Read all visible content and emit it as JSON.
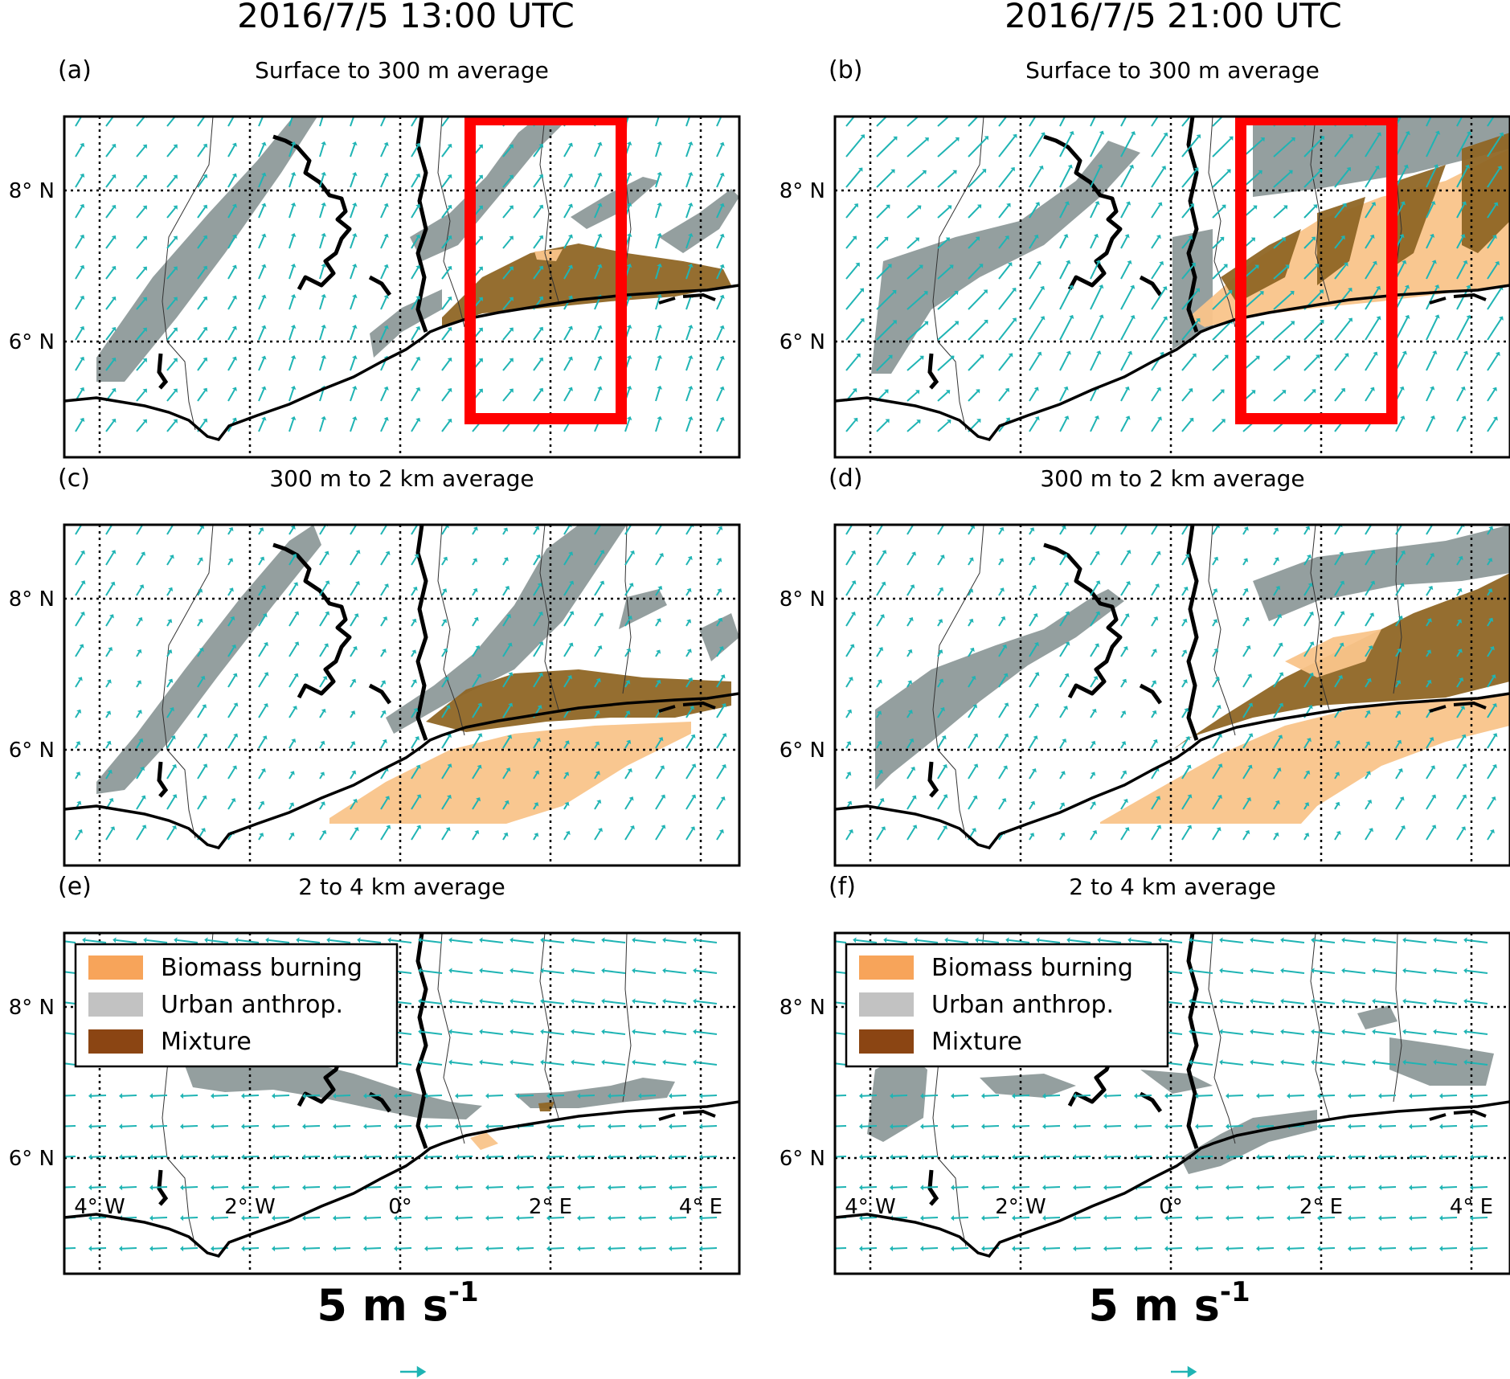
{
  "column_titles": [
    "2016/7/5   13:00 UTC",
    "2016/7/5  21:00 UTC"
  ],
  "panels": [
    {
      "letter": "(a)",
      "title": "Surface to 300 m average",
      "level": "surface",
      "time": "13UTC",
      "box": true
    },
    {
      "letter": "(b)",
      "title": "Surface to 300 m average",
      "level": "surface",
      "time": "21UTC",
      "box": true
    },
    {
      "letter": "(c)",
      "title": "300 m to 2 km average",
      "level": "mid",
      "time": "13UTC",
      "box": false
    },
    {
      "letter": "(d)",
      "title": "300 m to 2 km average",
      "level": "mid",
      "time": "21UTC",
      "box": false
    },
    {
      "letter": "(e)",
      "title": "2 to 4 km average",
      "level": "upper",
      "time": "13UTC",
      "box": false
    },
    {
      "letter": "(f)",
      "title": "2 to 4 km average",
      "level": "upper",
      "time": "21UTC",
      "box": false
    }
  ],
  "lat_ticks": [
    "8° N",
    "6° N"
  ],
  "lon_ticks": [
    "4° W",
    "2° W",
    "0°",
    "2° E",
    "4° E"
  ],
  "scale_label": {
    "main": "5 m s",
    "exp": "-1"
  },
  "legend": [
    {
      "label": "Biomass burning",
      "color": "#f7a45a"
    },
    {
      "label": "Urban anthrop.",
      "color": "#c2c2c2"
    },
    {
      "label": "Mixture",
      "color": "#8b4513"
    }
  ],
  "colors": {
    "biomass": "#f9c48a",
    "urban": "#8e9a9a",
    "mixture": "#8f6625",
    "arrow": "#1fb4b4",
    "box": "#ff0000",
    "coast": "#000000"
  }
}
